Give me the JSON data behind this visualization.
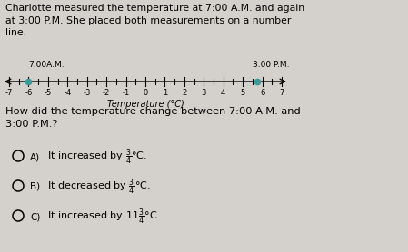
{
  "title_text": "Charlotte measured the temperature at 7:00 A.M. and again\nat 3:00 P.M. She placed both measurements on a number\nline.",
  "number_line_min": -7,
  "number_line_max": 7,
  "tick_integers": [
    -7,
    -6,
    -5,
    -4,
    -3,
    -2,
    -1,
    0,
    1,
    2,
    3,
    4,
    5,
    6,
    7
  ],
  "am_value": -6,
  "pm_value": 5.75,
  "am_label": "7:00A.M.",
  "pm_label": "3:00 P.M.",
  "xlabel": "Temperature (°C)",
  "question": "How did the temperature change between 7:00 A.M. and\n3:00 P.M.?",
  "choice_A": "It increased by $\\frac{3}{4}$°C.",
  "choice_B": "It decreased by $\\frac{3}{4}$°C.",
  "choice_C": "It increased by $11\\frac{3}{4}$°C.",
  "bg_color": "#d4d0cb",
  "dot_color": "#3a9a9a",
  "line_color": "#000000",
  "text_color": "#000000",
  "choice_label_A": "A)",
  "choice_label_B": "B)",
  "choice_label_C": "C)"
}
